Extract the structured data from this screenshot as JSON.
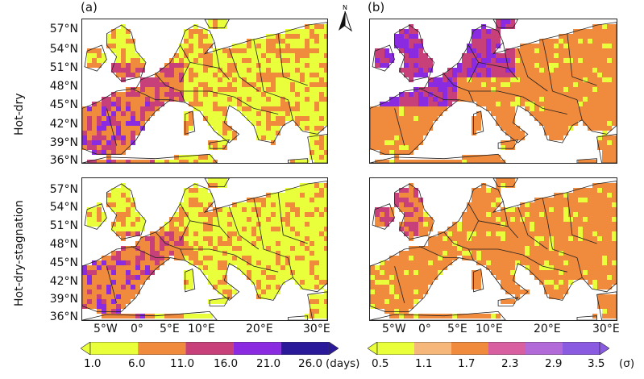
{
  "panels": {
    "a": {
      "label": "(a)"
    },
    "b": {
      "label": "(b)"
    }
  },
  "rows": {
    "top": {
      "label": "Hot-dry"
    },
    "bottom": {
      "label": "Hot-dry-stagnation"
    }
  },
  "north_arrow": {
    "letter": "N"
  },
  "latitude_ticks": [
    "57°N",
    "54°N",
    "51°N",
    "48°N",
    "45°N",
    "42°N",
    "39°N",
    "36°N"
  ],
  "longitude_ticks": [
    "5°W",
    "0°",
    "5°E",
    "10°E",
    "20°E",
    "30°E"
  ],
  "colorbar_a": {
    "ticks": [
      "1.0",
      "6.0",
      "11.0",
      "16.0",
      "21.0",
      "26.0"
    ],
    "unit": "(days)",
    "colors": [
      "#e8ff3a",
      "#f08a3c",
      "#c8407a",
      "#8a2be2",
      "#2a1a9a"
    ]
  },
  "colorbar_b": {
    "ticks": [
      "0.5",
      "1.1",
      "1.7",
      "2.3",
      "2.9",
      "3.5"
    ],
    "unit": "(σ)",
    "colors": [
      "#e8ff3a",
      "#f5b87a",
      "#f08a3c",
      "#d85fa0",
      "#b26ad8",
      "#8a5be0"
    ]
  },
  "colors": {
    "land_low": "#eaff3c",
    "land_mid": "#f08a3c",
    "land_high": "#c8407a",
    "land_max": "#8a2be2"
  }
}
